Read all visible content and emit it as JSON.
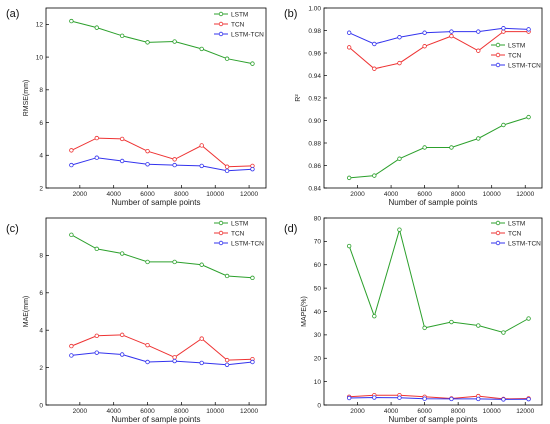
{
  "chart_data": [
    {
      "type": "line",
      "panel_label": "(a)",
      "xlabel": "Number of sample points",
      "ylabel": "RMSE(mm)",
      "xlim": [
        0,
        13000
      ],
      "xticks": [
        2000,
        4000,
        6000,
        8000,
        10000,
        12000
      ],
      "ylim": [
        2,
        13
      ],
      "yticks": [
        2,
        4,
        6,
        8,
        10,
        12
      ],
      "legend_position": "top-right",
      "x": [
        1500,
        3000,
        4500,
        6000,
        7600,
        9200,
        10700,
        12200
      ],
      "series": [
        {
          "name": "LSTM",
          "color": "#2ca02c",
          "values": [
            12.2,
            11.8,
            11.3,
            10.9,
            10.95,
            10.5,
            9.9,
            9.6
          ]
        },
        {
          "name": "TCN",
          "color": "#ee3333",
          "values": [
            4.3,
            5.05,
            5.0,
            4.25,
            3.75,
            4.6,
            3.3,
            3.35
          ]
        },
        {
          "name": "LSTM-TCN",
          "color": "#3333ee",
          "values": [
            3.4,
            3.85,
            3.65,
            3.45,
            3.4,
            3.35,
            3.05,
            3.15
          ]
        }
      ]
    },
    {
      "type": "line",
      "panel_label": "(b)",
      "xlabel": "Number of sample points",
      "ylabel": "R²",
      "xlim": [
        0,
        13000
      ],
      "xticks": [
        2000,
        4000,
        6000,
        8000,
        10000,
        12000
      ],
      "ylim": [
        0.84,
        1.0
      ],
      "yticks": [
        0.84,
        0.86,
        0.88,
        0.9,
        0.92,
        0.94,
        0.96,
        0.98,
        1.0
      ],
      "legend_position": "top-right",
      "x": [
        1500,
        3000,
        4500,
        6000,
        7600,
        9200,
        10700,
        12200
      ],
      "series": [
        {
          "name": "LSTM",
          "color": "#2ca02c",
          "values": [
            0.849,
            0.851,
            0.866,
            0.876,
            0.876,
            0.884,
            0.896,
            0.903
          ]
        },
        {
          "name": "TCN",
          "color": "#ee3333",
          "values": [
            0.965,
            0.946,
            0.951,
            0.966,
            0.975,
            0.962,
            0.979,
            0.979
          ]
        },
        {
          "name": "LSTM-TCN",
          "color": "#3333ee",
          "values": [
            0.978,
            0.968,
            0.974,
            0.978,
            0.979,
            0.979,
            0.982,
            0.981
          ]
        }
      ]
    },
    {
      "type": "line",
      "panel_label": "(c)",
      "xlabel": "Number of sample points",
      "ylabel": "MAE(mm)",
      "xlim": [
        0,
        13000
      ],
      "xticks": [
        2000,
        4000,
        6000,
        8000,
        10000,
        12000
      ],
      "ylim": [
        0,
        10
      ],
      "yticks": [
        0,
        2,
        4,
        6,
        8
      ],
      "legend_position": "right",
      "x": [
        1500,
        3000,
        4500,
        6000,
        7600,
        9200,
        10700,
        12200
      ],
      "series": [
        {
          "name": "LSTM",
          "color": "#2ca02c",
          "values": [
            9.1,
            8.35,
            8.1,
            7.65,
            7.65,
            7.5,
            6.9,
            6.8
          ]
        },
        {
          "name": "TCN",
          "color": "#ee3333",
          "values": [
            3.15,
            3.7,
            3.75,
            3.2,
            2.55,
            3.55,
            2.4,
            2.45
          ]
        },
        {
          "name": "LSTM-TCN",
          "color": "#3333ee",
          "values": [
            2.65,
            2.8,
            2.7,
            2.3,
            2.35,
            2.25,
            2.15,
            2.3
          ]
        }
      ]
    },
    {
      "type": "line",
      "panel_label": "(d)",
      "xlabel": "Number of sample points",
      "ylabel": "MAPE(%)",
      "xlim": [
        0,
        13000
      ],
      "xticks": [
        2000,
        4000,
        6000,
        8000,
        10000,
        12000
      ],
      "ylim": [
        0,
        80
      ],
      "yticks": [
        0,
        10,
        20,
        30,
        40,
        50,
        60,
        70,
        80
      ],
      "legend_position": "top-right",
      "x": [
        1500,
        3000,
        4500,
        6000,
        7600,
        9200,
        10700,
        12200
      ],
      "series": [
        {
          "name": "LSTM",
          "color": "#2ca02c",
          "values": [
            68,
            38,
            75,
            33,
            35.5,
            34,
            31,
            37
          ]
        },
        {
          "name": "TCN",
          "color": "#ee3333",
          "values": [
            3.5,
            4.2,
            4.2,
            3.5,
            2.8,
            3.8,
            2.6,
            2.8
          ]
        },
        {
          "name": "LSTM-TCN",
          "color": "#3333ee",
          "values": [
            3.0,
            3.2,
            3.1,
            2.7,
            2.6,
            2.6,
            2.4,
            2.5
          ]
        }
      ]
    }
  ]
}
